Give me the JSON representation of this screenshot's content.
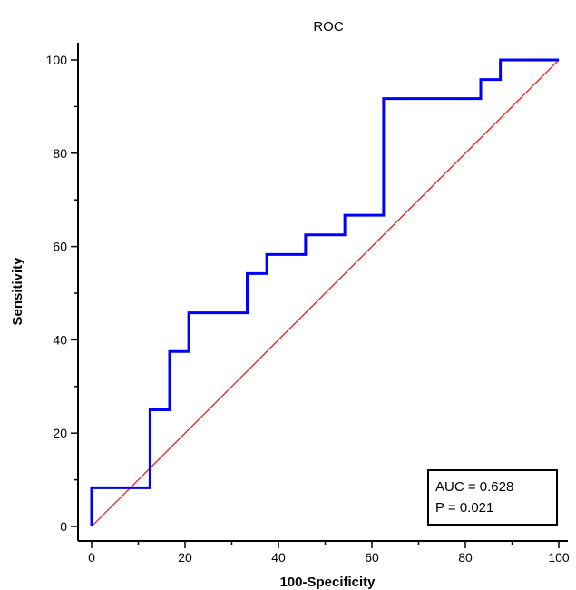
{
  "chart_data": {
    "type": "line",
    "title": "ROC",
    "xlabel": "100-Specificity",
    "ylabel": "Sensitivity",
    "xlim": [
      0,
      100
    ],
    "ylim": [
      0,
      100
    ],
    "xticks": [
      0,
      20,
      40,
      60,
      80,
      100
    ],
    "yticks": [
      0,
      20,
      40,
      60,
      80,
      100
    ],
    "grid": false,
    "series": [
      {
        "color": "#0000ff",
        "x": [
          0,
          0,
          12.5,
          12.5,
          16.7,
          16.7,
          20.8,
          20.8,
          33.3,
          33.3,
          37.5,
          37.5,
          45.8,
          45.8,
          54.2,
          54.2,
          62.5,
          62.5,
          83.3,
          83.3,
          87.5,
          87.5,
          100
        ],
        "y": [
          0,
          8.3,
          8.3,
          25,
          25,
          37.5,
          37.5,
          45.8,
          45.8,
          54.2,
          54.2,
          58.3,
          58.3,
          62.5,
          62.5,
          66.7,
          66.7,
          91.7,
          91.7,
          95.8,
          95.8,
          100,
          100
        ]
      },
      {
        "color": "#ff0000",
        "x": [
          0,
          100
        ],
        "y": [
          0,
          100
        ]
      }
    ],
    "annotation": {
      "auc": "AUC = 0.628",
      "p": "P = 0.021",
      "placement": "bottom-right"
    }
  }
}
